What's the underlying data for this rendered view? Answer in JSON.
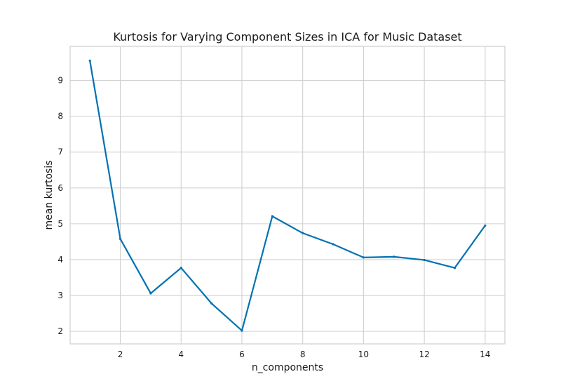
{
  "chart_data": {
    "type": "line",
    "title": "Kurtosis for Varying Component Sizes in ICA for Music Dataset",
    "xlabel": "n_components",
    "ylabel": "mean kurtosis",
    "xlim": [
      0.35,
      14.65
    ],
    "ylim": [
      1.65,
      9.95
    ],
    "xticks": [
      2,
      4,
      6,
      8,
      10,
      12,
      14
    ],
    "yticks": [
      2,
      3,
      4,
      5,
      6,
      7,
      8,
      9
    ],
    "grid": true,
    "legend": "none",
    "colors": {
      "line": "#0072B2"
    },
    "series": [
      {
        "x": [
          1,
          2,
          3,
          4,
          5,
          6,
          7,
          8,
          9,
          10,
          11,
          12,
          13,
          14
        ],
        "values": [
          9.55,
          4.58,
          3.06,
          3.77,
          2.78,
          2.02,
          5.21,
          4.74,
          4.43,
          4.06,
          4.08,
          3.99,
          3.77,
          4.95
        ]
      }
    ]
  }
}
